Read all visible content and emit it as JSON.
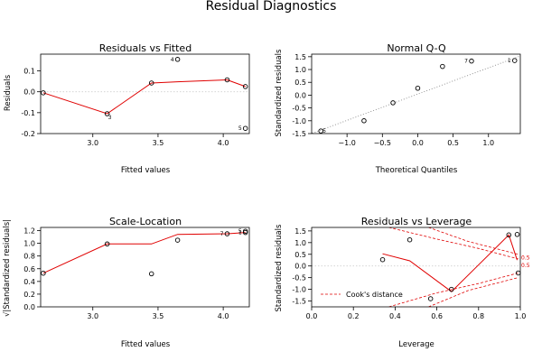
{
  "figure": {
    "title": "Residual Diagnostics"
  },
  "colors": {
    "smooth": "#e00000",
    "points": "#000000",
    "reference": "#888888"
  },
  "chart_data": [
    {
      "id": "rvf",
      "type": "scatter",
      "title": "Residuals vs Fitted",
      "xlabel": "Fitted values",
      "ylabel": "Residuals",
      "xlim": [
        2.6,
        4.2
      ],
      "ylim": [
        -0.2,
        0.18
      ],
      "xticks": [
        3.0,
        3.5,
        4.0
      ],
      "xtick_labels": [
        "3.0",
        "3.5",
        "4.0"
      ],
      "yticks": [
        -0.2,
        -0.1,
        0.0,
        0.1
      ],
      "ytick_labels": [
        "-0.2",
        "-0.1",
        "0.0",
        "0.1"
      ],
      "hline": 0,
      "points": [
        {
          "x": 2.62,
          "y": -0.005,
          "label": ""
        },
        {
          "x": 3.11,
          "y": -0.105,
          "label": "3"
        },
        {
          "x": 3.45,
          "y": 0.042,
          "label": ""
        },
        {
          "x": 3.65,
          "y": 0.155,
          "label": "4"
        },
        {
          "x": 4.03,
          "y": 0.057,
          "label": ""
        },
        {
          "x": 4.17,
          "y": -0.175,
          "label": "5"
        },
        {
          "x": 4.17,
          "y": 0.025,
          "label": ""
        }
      ],
      "smooth": [
        [
          2.62,
          -0.005
        ],
        [
          3.11,
          -0.105
        ],
        [
          3.45,
          0.042
        ],
        [
          3.65,
          0.048
        ],
        [
          4.03,
          0.057
        ],
        [
          4.17,
          0.025
        ]
      ]
    },
    {
      "id": "qq",
      "type": "scatter",
      "title": "Normal Q-Q",
      "xlabel": "Theoretical Quantiles",
      "ylabel": "Standardized residuals",
      "xlim": [
        -1.5,
        1.45
      ],
      "ylim": [
        -1.5,
        1.6
      ],
      "xticks": [
        -1.0,
        -0.5,
        0.0,
        0.5,
        1.0
      ],
      "xtick_labels": [
        "−1.0",
        "−0.5",
        "0.0",
        "0.5",
        "1.0"
      ],
      "yticks": [
        -1.5,
        -1.0,
        -0.5,
        0.0,
        0.5,
        1.0,
        1.5
      ],
      "ytick_labels": [
        "-1.5",
        "-1.0",
        "-0.5",
        "0.0",
        "0.5",
        "1.0",
        "1.5"
      ],
      "refline": [
        [
          -1.6,
          -1.6
        ],
        [
          1.5,
          1.58
        ]
      ],
      "points": [
        {
          "x": -1.37,
          "y": -1.4,
          "label": "5"
        },
        {
          "x": -0.76,
          "y": -1.0,
          "label": ""
        },
        {
          "x": -0.35,
          "y": -0.3,
          "label": ""
        },
        {
          "x": 0.0,
          "y": 0.27,
          "label": ""
        },
        {
          "x": 0.35,
          "y": 1.12,
          "label": ""
        },
        {
          "x": 0.76,
          "y": 1.33,
          "label": "7"
        },
        {
          "x": 1.37,
          "y": 1.35,
          "label": "1"
        }
      ]
    },
    {
      "id": "sl",
      "type": "scatter",
      "title": "Scale-Location",
      "xlabel": "Fitted values",
      "ylabel": "√|Standardized residuals|",
      "xlim": [
        2.6,
        4.2
      ],
      "ylim": [
        0.0,
        1.25
      ],
      "xticks": [
        3.0,
        3.5,
        4.0
      ],
      "xtick_labels": [
        "3.0",
        "3.5",
        "4.0"
      ],
      "yticks": [
        0.0,
        0.2,
        0.4,
        0.6,
        0.8,
        1.0,
        1.2
      ],
      "ytick_labels": [
        "0.0",
        "0.2",
        "0.4",
        "0.6",
        "0.8",
        "1.0",
        "1.2"
      ],
      "points": [
        {
          "x": 2.62,
          "y": 0.53,
          "label": ""
        },
        {
          "x": 3.11,
          "y": 0.99,
          "label": ""
        },
        {
          "x": 3.45,
          "y": 0.52,
          "label": ""
        },
        {
          "x": 3.65,
          "y": 1.05,
          "label": ""
        },
        {
          "x": 4.03,
          "y": 1.15,
          "label": "7"
        },
        {
          "x": 4.17,
          "y": 1.17,
          "label": "1"
        },
        {
          "x": 4.17,
          "y": 1.19,
          "label": "5"
        }
      ],
      "smooth": [
        [
          2.62,
          0.53
        ],
        [
          3.11,
          0.99
        ],
        [
          3.45,
          0.99
        ],
        [
          3.65,
          1.14
        ],
        [
          4.03,
          1.15
        ],
        [
          4.17,
          1.17
        ]
      ]
    },
    {
      "id": "rvl",
      "type": "scatter",
      "title": "Residuals vs Leverage",
      "xlabel": "Leverage",
      "ylabel": "Standardized residuals",
      "xlim": [
        0.0,
        1.0
      ],
      "ylim": [
        -1.75,
        1.65
      ],
      "xticks": [
        0.0,
        0.2,
        0.4,
        0.6,
        0.8,
        1.0
      ],
      "xtick_labels": [
        "0.0",
        "0.2",
        "0.4",
        "0.6",
        "0.8",
        "1.0"
      ],
      "yticks": [
        -1.5,
        -1.0,
        -0.5,
        0.0,
        0.5,
        1.0,
        1.5
      ],
      "ytick_labels": [
        "-1.5",
        "-1.0",
        "-0.5",
        "0.0",
        "0.5",
        "1.0",
        "1.5"
      ],
      "hline": 0,
      "points": [
        {
          "x": 0.34,
          "y": 0.27,
          "label": ""
        },
        {
          "x": 0.47,
          "y": 1.12,
          "label": ""
        },
        {
          "x": 0.57,
          "y": -1.4,
          "label": ""
        },
        {
          "x": 0.67,
          "y": -1.0,
          "label": ""
        },
        {
          "x": 0.945,
          "y": 1.33,
          "label": ""
        },
        {
          "x": 0.985,
          "y": 1.35,
          "label": ""
        },
        {
          "x": 0.99,
          "y": -0.3,
          "label": ""
        }
      ],
      "smooth": [
        [
          0.34,
          0.52
        ],
        [
          0.47,
          0.22
        ],
        [
          0.67,
          -1.1
        ],
        [
          0.945,
          1.33
        ],
        [
          0.985,
          0.25
        ]
      ],
      "cook_contours": [
        [
          [
            0.37,
            1.65
          ],
          [
            0.6,
            1.15
          ],
          [
            0.8,
            0.75
          ],
          [
            0.99,
            0.3
          ]
        ],
        [
          [
            0.56,
            1.65
          ],
          [
            0.75,
            1.05
          ],
          [
            0.99,
            0.5
          ]
        ],
        [
          [
            0.37,
            -1.75
          ],
          [
            0.6,
            -1.15
          ],
          [
            0.8,
            -0.75
          ],
          [
            0.99,
            -0.3
          ]
        ],
        [
          [
            0.56,
            -1.75
          ],
          [
            0.75,
            -1.05
          ],
          [
            0.99,
            -0.5
          ]
        ]
      ],
      "cook_labels": [
        "0.5",
        "0.5"
      ],
      "legend": {
        "label": "Cook's distance",
        "position": "bottom-left"
      }
    }
  ]
}
